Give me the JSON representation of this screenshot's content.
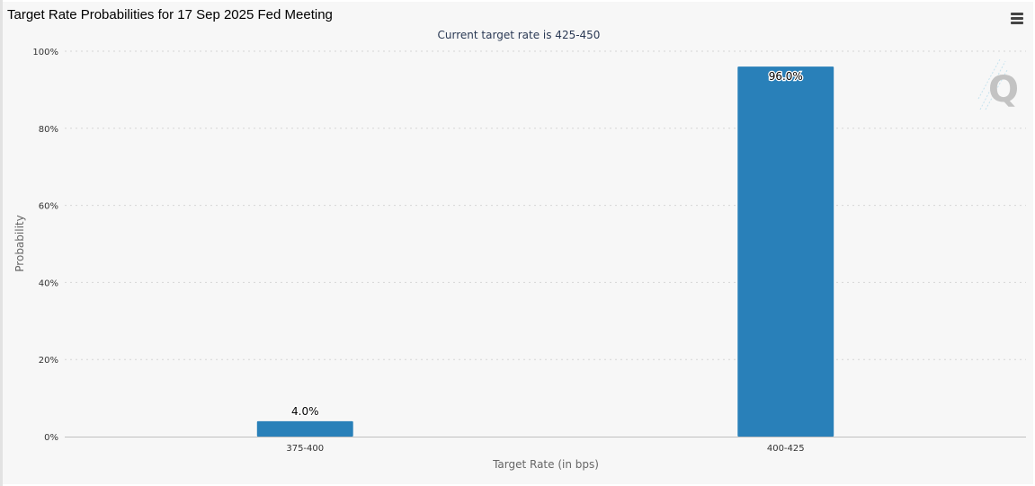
{
  "title": "Target Rate Probabilities for 17 Sep 2025 Fed Meeting",
  "subtitle": "Current target rate is 425-450",
  "menu_icon": "hamburger-menu-icon",
  "watermark_icon": "cme-q-logo",
  "colors": {
    "bar": "#2980b9",
    "background": "#f7f7f7",
    "grid": "#d6d6d6",
    "axis": "#c0c0c0"
  },
  "chart_data": {
    "type": "bar",
    "title": "Target Rate Probabilities for 17 Sep 2025 Fed Meeting",
    "subtitle": "Current target rate is 425-450",
    "xlabel": "Target Rate (in bps)",
    "ylabel": "Probability",
    "categories": [
      "375-400",
      "400-425"
    ],
    "values": [
      4.0,
      96.0
    ],
    "data_labels": [
      "4.0%",
      "96.0%"
    ],
    "ylim": [
      0,
      100
    ],
    "yticks": [
      0,
      20,
      40,
      60,
      80,
      100
    ],
    "ytick_labels": [
      "0%",
      "20%",
      "40%",
      "60%",
      "80%",
      "100%"
    ],
    "grid": true,
    "legend": "none"
  }
}
